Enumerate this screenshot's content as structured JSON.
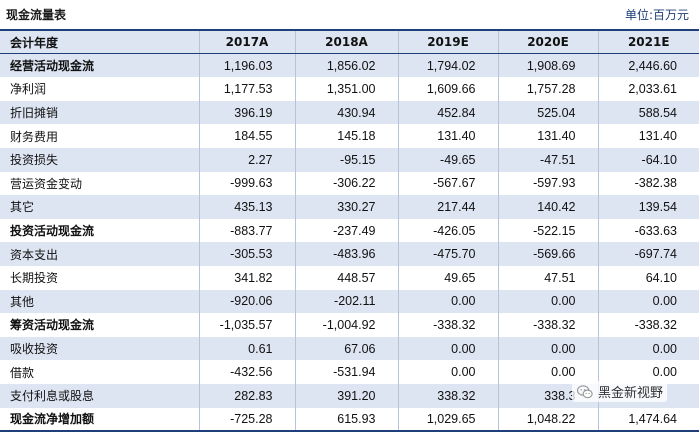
{
  "title": "现金流量表",
  "unit": "单位:百万元",
  "header": {
    "label": "会计年度",
    "years": [
      "2017A",
      "2018A",
      "2019E",
      "2020E",
      "2021E"
    ]
  },
  "rows": [
    {
      "label": "经营活动现金流",
      "values": [
        "1,196.03",
        "1,856.02",
        "1,794.02",
        "1,908.69",
        "2,446.60"
      ]
    },
    {
      "label": "净利润",
      "values": [
        "1,177.53",
        "1,351.00",
        "1,609.66",
        "1,757.28",
        "2,033.61"
      ]
    },
    {
      "label": "折旧摊销",
      "values": [
        "396.19",
        "430.94",
        "452.84",
        "525.04",
        "588.54"
      ]
    },
    {
      "label": "财务费用",
      "values": [
        "184.55",
        "145.18",
        "131.40",
        "131.40",
        "131.40"
      ]
    },
    {
      "label": "投资损失",
      "values": [
        "2.27",
        "-95.15",
        "-49.65",
        "-47.51",
        "-64.10"
      ]
    },
    {
      "label": "营运资金变动",
      "values": [
        "-999.63",
        "-306.22",
        "-567.67",
        "-597.93",
        "-382.38"
      ]
    },
    {
      "label": "其它",
      "values": [
        "435.13",
        "330.27",
        "217.44",
        "140.42",
        "139.54"
      ]
    },
    {
      "label": "投资活动现金流",
      "values": [
        "-883.77",
        "-237.49",
        "-426.05",
        "-522.15",
        "-633.63"
      ]
    },
    {
      "label": "资本支出",
      "values": [
        "-305.53",
        "-483.96",
        "-475.70",
        "-569.66",
        "-697.74"
      ]
    },
    {
      "label": "长期投资",
      "values": [
        "341.82",
        "448.57",
        "49.65",
        "47.51",
        "64.10"
      ]
    },
    {
      "label": "其他",
      "values": [
        "-920.06",
        "-202.11",
        "0.00",
        "0.00",
        "0.00"
      ]
    },
    {
      "label": "筹资活动现金流",
      "values": [
        "-1,035.57",
        "-1,004.92",
        "-338.32",
        "-338.32",
        "-338.32"
      ]
    },
    {
      "label": "吸收投资",
      "values": [
        "0.61",
        "67.06",
        "0.00",
        "0.00",
        "0.00"
      ]
    },
    {
      "label": "借款",
      "values": [
        "-432.56",
        "-531.94",
        "0.00",
        "0.00",
        "0.00"
      ]
    },
    {
      "label": "支付利息或股息",
      "values": [
        "282.83",
        "391.20",
        "338.32",
        "338.3",
        ""
      ]
    },
    {
      "label": "现金流净增加额",
      "values": [
        "-725.28",
        "615.93",
        "1,029.65",
        "1,048.22",
        "1,474.64"
      ]
    }
  ],
  "watermark": {
    "text": "黑金新视野",
    "icon": "wechat-icon"
  },
  "colors": {
    "shade": "#dde5f2",
    "rule": "#1f3f7a",
    "unit_text": "#1f3f7a"
  }
}
